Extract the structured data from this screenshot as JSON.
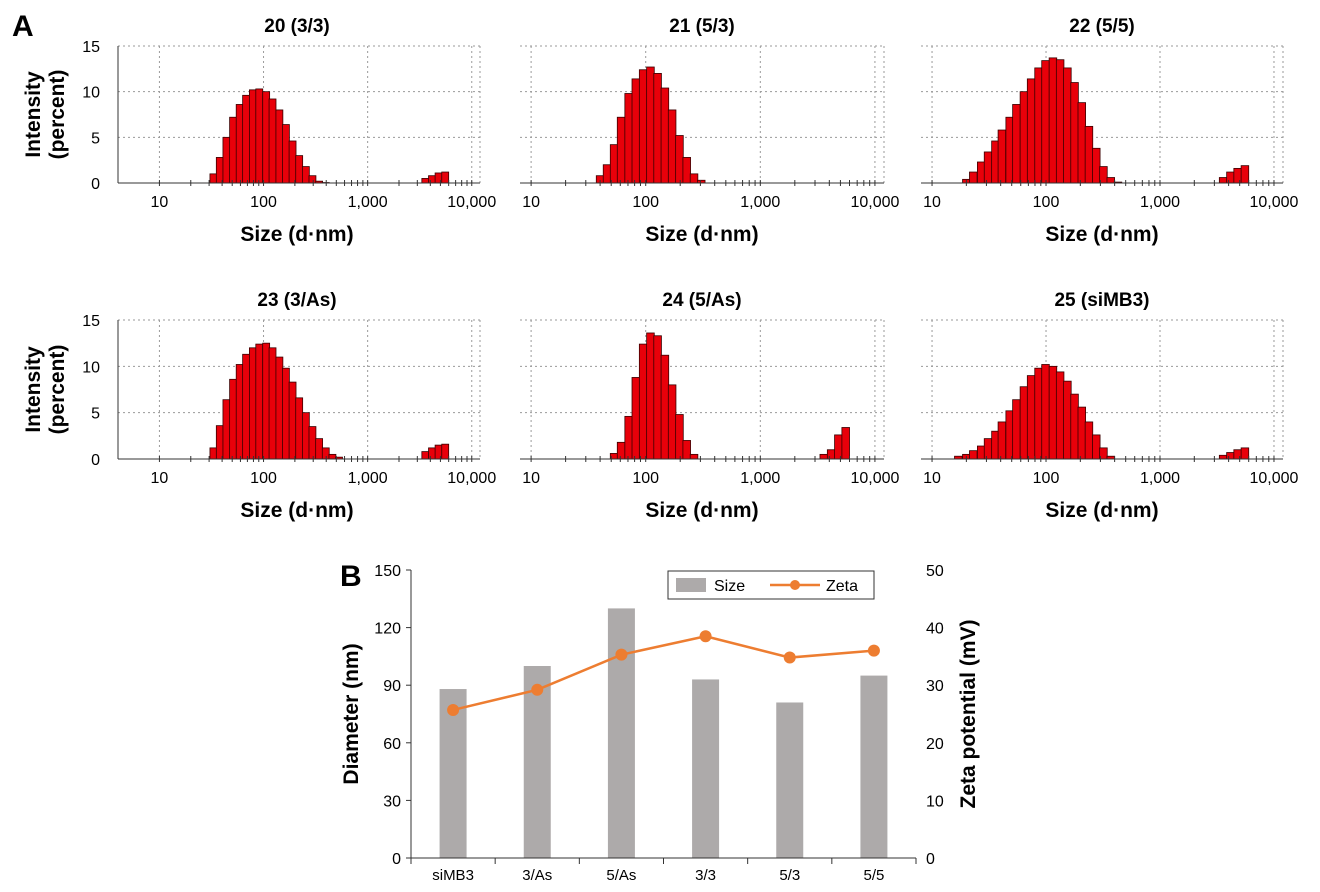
{
  "panels": {
    "a": "A",
    "b": "B"
  },
  "chart_data": [
    {
      "type": "bar",
      "title": "20 (3/3)",
      "xlabel": "Size (d·nm)",
      "ylabel": [
        "Intensity",
        "(percent)"
      ],
      "x_scale": "log",
      "xlim": [
        4,
        12000
      ],
      "ylim": [
        0,
        15
      ],
      "xticks": [
        10,
        100,
        1000,
        10000
      ],
      "xticklabels": [
        "10",
        "100",
        "1,000",
        "10,000"
      ],
      "yticks": [
        0,
        5,
        10,
        15
      ],
      "grid": true,
      "x": [
        33,
        38,
        44,
        51,
        59,
        68,
        79,
        91,
        106,
        122,
        142,
        164,
        190,
        220,
        255,
        295,
        342,
        396,
        3580,
        4150,
        4800,
        5560
      ],
      "values": [
        1.0,
        2.8,
        5.0,
        7.2,
        8.6,
        9.6,
        10.2,
        10.3,
        10.0,
        9.2,
        8.0,
        6.4,
        4.6,
        3.0,
        1.8,
        0.8,
        0.2,
        0.05,
        0.5,
        0.8,
        1.1,
        1.2
      ]
    },
    {
      "type": "bar",
      "title": "21 (5/3)",
      "xlabel": "Size (d·nm)",
      "x_scale": "log",
      "xlim": [
        8,
        12000
      ],
      "ylim": [
        0,
        15
      ],
      "xticks": [
        10,
        100,
        1000,
        10000
      ],
      "xticklabels": [
        "10",
        "100",
        "1,000",
        "10,000"
      ],
      "grid": true,
      "x": [
        40,
        46,
        53,
        61,
        71,
        82,
        95,
        110,
        127,
        147,
        170,
        197,
        228,
        264,
        305
      ],
      "values": [
        0.8,
        2.0,
        4.2,
        7.2,
        9.8,
        11.4,
        12.4,
        12.7,
        12.0,
        10.4,
        8.0,
        5.2,
        2.8,
        1.0,
        0.3
      ]
    },
    {
      "type": "bar",
      "title": "22 (5/5)",
      "xlabel": "Size (d·nm)",
      "x_scale": "log",
      "xlim": [
        8,
        12000
      ],
      "ylim": [
        0,
        15
      ],
      "xticks": [
        10,
        100,
        1000,
        10000
      ],
      "xticklabels": [
        "10",
        "100",
        "1,000",
        "10,000"
      ],
      "grid": true,
      "x": [
        20,
        23,
        27,
        31,
        36,
        41,
        48,
        55,
        64,
        74,
        86,
        99,
        115,
        133,
        154,
        178,
        206,
        238,
        276,
        319,
        370,
        428,
        3580,
        4150,
        4800,
        5560
      ],
      "values": [
        0.4,
        1.2,
        2.3,
        3.4,
        4.6,
        5.8,
        7.2,
        8.6,
        10.0,
        11.4,
        12.6,
        13.4,
        13.7,
        13.5,
        12.6,
        11.0,
        8.8,
        6.2,
        3.8,
        1.8,
        0.6,
        0.1,
        0.6,
        1.2,
        1.6,
        1.9
      ]
    },
    {
      "type": "bar",
      "title": "23 (3/As)",
      "xlabel": "Size (d·nm)",
      "ylabel": [
        "Intensity",
        "(percent)"
      ],
      "x_scale": "log",
      "xlim": [
        4,
        12000
      ],
      "ylim": [
        0,
        15
      ],
      "xticks": [
        10,
        100,
        1000,
        10000
      ],
      "xticklabels": [
        "10",
        "100",
        "1,000",
        "10,000"
      ],
      "yticks": [
        0,
        5,
        10,
        15
      ],
      "grid": true,
      "x": [
        33,
        38,
        44,
        51,
        59,
        68,
        79,
        91,
        106,
        122,
        142,
        164,
        190,
        220,
        255,
        295,
        342,
        396,
        459,
        531,
        3580,
        4150,
        4800,
        5560
      ],
      "values": [
        1.2,
        3.6,
        6.4,
        8.6,
        10.2,
        11.3,
        12.0,
        12.4,
        12.5,
        12.0,
        11.0,
        9.8,
        8.3,
        6.6,
        5.0,
        3.5,
        2.2,
        1.2,
        0.5,
        0.2,
        0.8,
        1.2,
        1.5,
        1.6
      ]
    },
    {
      "type": "bar",
      "title": "24 (5/As)",
      "xlabel": "Size (d·nm)",
      "x_scale": "log",
      "xlim": [
        8,
        12000
      ],
      "ylim": [
        0,
        15
      ],
      "xticks": [
        10,
        100,
        1000,
        10000
      ],
      "xticklabels": [
        "10",
        "100",
        "1,000",
        "10,000"
      ],
      "grid": true,
      "x": [
        53,
        61,
        71,
        82,
        95,
        110,
        127,
        147,
        170,
        197,
        228,
        264,
        3580,
        4150,
        4800,
        5560
      ],
      "values": [
        0.6,
        1.8,
        4.6,
        8.8,
        12.4,
        13.6,
        13.3,
        11.2,
        8.0,
        4.8,
        2.0,
        0.5,
        0.5,
        1.0,
        2.6,
        3.4
      ]
    },
    {
      "type": "bar",
      "title": "25 (siMB3)",
      "xlabel": "Size (d·nm)",
      "x_scale": "log",
      "xlim": [
        8,
        12000
      ],
      "ylim": [
        0,
        15
      ],
      "xticks": [
        10,
        100,
        1000,
        10000
      ],
      "xticklabels": [
        "10",
        "100",
        "1,000",
        "10,000"
      ],
      "grid": true,
      "x": [
        17,
        20,
        23,
        27,
        31,
        36,
        41,
        48,
        55,
        64,
        74,
        86,
        99,
        115,
        133,
        154,
        178,
        206,
        238,
        276,
        319,
        370,
        3580,
        4150,
        4800,
        5560
      ],
      "values": [
        0.3,
        0.5,
        0.9,
        1.4,
        2.2,
        3.0,
        4.0,
        5.2,
        6.4,
        7.8,
        9.0,
        9.8,
        10.2,
        10.0,
        9.4,
        8.4,
        7.0,
        5.6,
        4.0,
        2.6,
        1.2,
        0.3,
        0.4,
        0.7,
        1.0,
        1.2
      ]
    },
    {
      "type": "bar",
      "categories": [
        "siMB3",
        "3/As",
        "5/As",
        "3/3",
        "5/3",
        "5/5"
      ],
      "series": [
        {
          "name": "Size",
          "chart": "bar",
          "axis": "left",
          "values": [
            88,
            100,
            130,
            93,
            81,
            95
          ],
          "color": "#adaaaa"
        },
        {
          "name": "Zeta",
          "chart": "line",
          "axis": "right",
          "values": [
            25.7,
            29.2,
            35.3,
            38.5,
            34.8,
            36.0
          ],
          "color": "#ed7d31"
        }
      ],
      "ylabel": "Diameter (nm)",
      "y2label": "Zeta potential (mV)",
      "ylim": [
        0,
        150
      ],
      "y2lim": [
        0,
        50
      ],
      "yticks": [
        0,
        30,
        60,
        90,
        120,
        150
      ],
      "y2ticks": [
        0,
        10,
        20,
        30,
        40,
        50
      ],
      "legend": "top-right",
      "grid": false
    }
  ]
}
